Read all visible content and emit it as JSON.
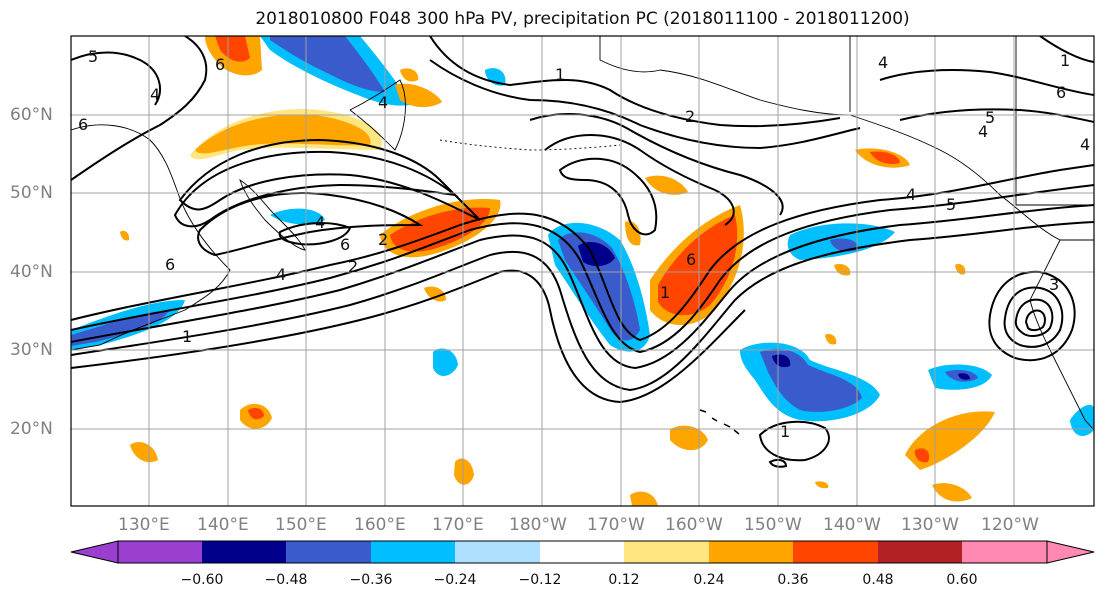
{
  "title": "2018010800 F048 300 hPa PV, precipitation PC (2018011100 - 2018011200)",
  "lat_labels": [
    "60°N",
    "50°N",
    "40°N",
    "30°N",
    "20°N"
  ],
  "lon_labels": [
    "130°E",
    "140°E",
    "150°E",
    "160°E",
    "170°E",
    "180°W",
    "170°W",
    "160°W",
    "150°W",
    "140°W",
    "130°W",
    "120°W"
  ],
  "colorbar": {
    "ticks": [
      "−0.60",
      "−0.48",
      "−0.36",
      "−0.24",
      "−0.12",
      "0.12",
      "0.24",
      "0.36",
      "0.48",
      "0.60"
    ],
    "under_color": "#9a3fd0",
    "over_color": "#ff89b3",
    "colors": [
      "#00008b",
      "#3a5bcc",
      "#00bfff",
      "#b0e0ff",
      "#ffffff",
      "#ffe680",
      "#ffa500",
      "#ff4500",
      "#b22222"
    ]
  },
  "contour_labels": [
    "5",
    "4",
    "6",
    "6",
    "4",
    "2",
    "1",
    "6",
    "4",
    "2",
    "1",
    "6",
    "4",
    "1",
    "2",
    "6",
    "1",
    "4",
    "5",
    "4",
    "6",
    "4",
    "3",
    "1",
    "4",
    "5"
  ],
  "colors": {
    "positive_strong": "#ff4500",
    "positive": "#ffa500",
    "positive_weak": "#ffe680",
    "negative_strong": "#00008b",
    "negative": "#3a5bcc",
    "negative_weak": "#00bfff",
    "negative_faint": "#b0e0ff"
  }
}
